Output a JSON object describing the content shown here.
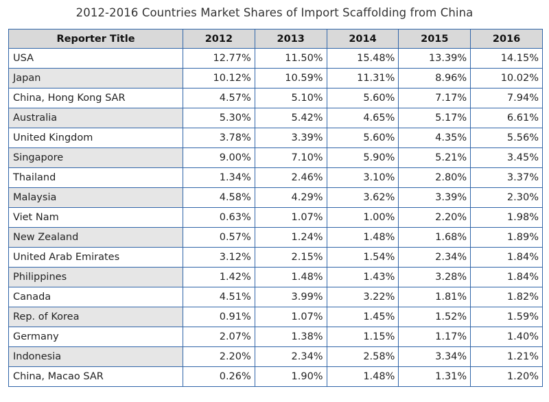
{
  "chart_data": {
    "type": "table",
    "title": "2012-2016 Countries Market Shares of Import Scaffolding from China",
    "columns": [
      "Reporter Title",
      "2012",
      "2013",
      "2014",
      "2015",
      "2016"
    ],
    "rows": [
      [
        "USA",
        "12.77%",
        "11.50%",
        "15.48%",
        "13.39%",
        "14.15%"
      ],
      [
        "Japan",
        "10.12%",
        "10.59%",
        "11.31%",
        "8.96%",
        "10.02%"
      ],
      [
        "China, Hong Kong SAR",
        "4.57%",
        "5.10%",
        "5.60%",
        "7.17%",
        "7.94%"
      ],
      [
        "Australia",
        "5.30%",
        "5.42%",
        "4.65%",
        "5.17%",
        "6.61%"
      ],
      [
        "United Kingdom",
        "3.78%",
        "3.39%",
        "5.60%",
        "4.35%",
        "5.56%"
      ],
      [
        "Singapore",
        "9.00%",
        "7.10%",
        "5.90%",
        "5.21%",
        "3.45%"
      ],
      [
        "Thailand",
        "1.34%",
        "2.46%",
        "3.10%",
        "2.80%",
        "3.37%"
      ],
      [
        "Malaysia",
        "4.58%",
        "4.29%",
        "3.62%",
        "3.39%",
        "2.30%"
      ],
      [
        "Viet Nam",
        "0.63%",
        "1.07%",
        "1.00%",
        "2.20%",
        "1.98%"
      ],
      [
        "New Zealand",
        "0.57%",
        "1.24%",
        "1.48%",
        "1.68%",
        "1.89%"
      ],
      [
        "United Arab Emirates",
        "3.12%",
        "2.15%",
        "1.54%",
        "2.34%",
        "1.84%"
      ],
      [
        "Philippines",
        "1.42%",
        "1.48%",
        "1.43%",
        "3.28%",
        "1.84%"
      ],
      [
        "Canada",
        "4.51%",
        "3.99%",
        "3.22%",
        "1.81%",
        "1.82%"
      ],
      [
        "Rep. of Korea",
        "0.91%",
        "1.07%",
        "1.45%",
        "1.52%",
        "1.59%"
      ],
      [
        "Germany",
        "2.07%",
        "1.38%",
        "1.15%",
        "1.17%",
        "1.40%"
      ],
      [
        "Indonesia",
        "2.20%",
        "2.34%",
        "2.58%",
        "3.34%",
        "1.21%"
      ],
      [
        "China, Macao SAR",
        "0.26%",
        "1.90%",
        "1.48%",
        "1.31%",
        "1.20%"
      ]
    ]
  },
  "colors": {
    "border": "#2f64a8",
    "header_bg": "#d9d9d9",
    "alt_row_name_bg": "#e6e6e6"
  }
}
